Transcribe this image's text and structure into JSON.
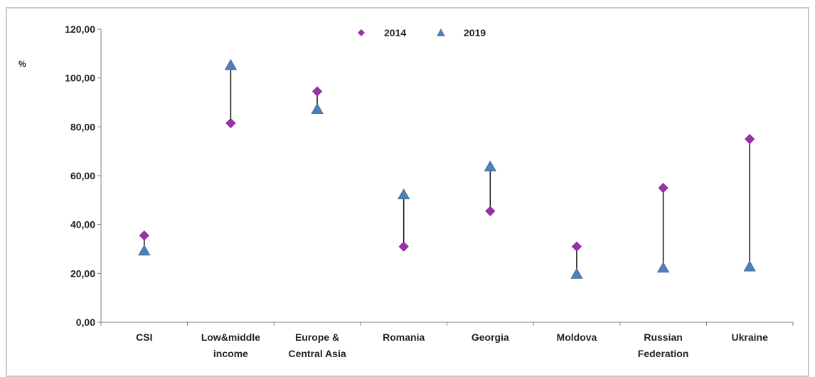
{
  "chart_data": {
    "type": "scatter",
    "title": "",
    "xlabel": "",
    "ylabel": "%",
    "ylim": [
      0,
      120
    ],
    "yticks": [
      "0,00",
      "20,00",
      "40,00",
      "60,00",
      "80,00",
      "100,00",
      "120,00"
    ],
    "grid": false,
    "legend_position": "top",
    "categories": [
      [
        "CSI"
      ],
      [
        "Low&middle",
        "income"
      ],
      [
        "Europe &",
        "Central Asia"
      ],
      [
        "Romania"
      ],
      [
        "Georgia"
      ],
      [
        "Moldova"
      ],
      [
        "Russian",
        "Federation"
      ],
      [
        "Ukraine"
      ]
    ],
    "series": [
      {
        "name": "2014",
        "marker": "diamond",
        "color": "#9b2fae",
        "values": [
          35.5,
          81.5,
          94.5,
          31.0,
          45.5,
          31.0,
          55.0,
          75.0
        ]
      },
      {
        "name": "2019",
        "marker": "triangle",
        "color": "#4f7fb4",
        "values": [
          29.0,
          105.0,
          87.0,
          52.0,
          63.5,
          19.5,
          22.0,
          22.5
        ]
      }
    ],
    "connector_color": "#111111"
  }
}
